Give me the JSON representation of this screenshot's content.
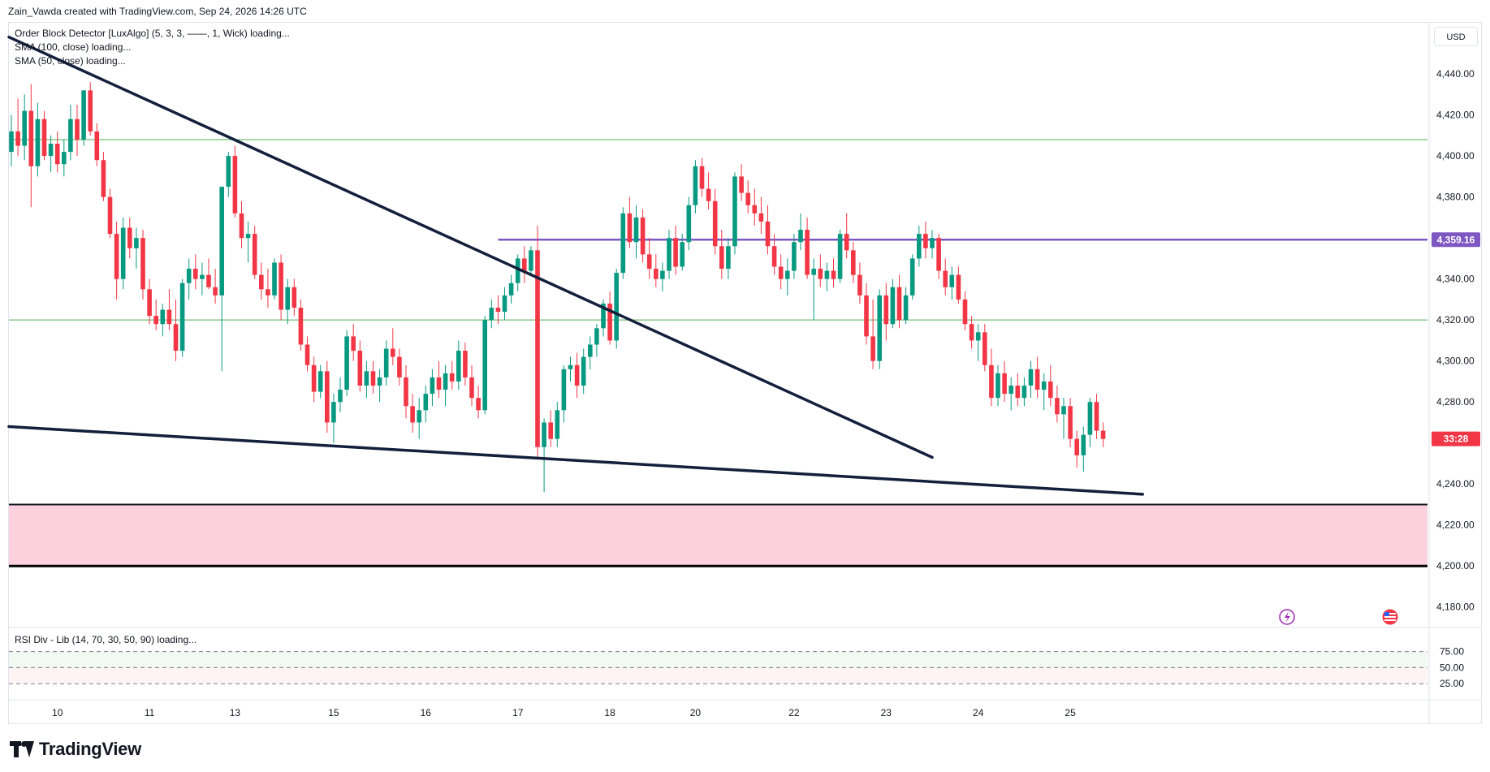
{
  "header": {
    "credit": "Zain_Vawda created with TradingView.com, Sep 24, 2026 14:26 UTC"
  },
  "legend": {
    "indicators": [
      "Order Block Detector [LuxAlgo] (5, 3, 3, ——, 1, Wick) loading...",
      "SMA (100, close) loading...",
      "SMA (50, close) loading..."
    ]
  },
  "toolbar": {
    "currency": "USD"
  },
  "rsi": {
    "legend": "RSI Div - Lib (14, 70, 30, 50, 90) loading..."
  },
  "brand": {
    "name": "TradingView"
  },
  "colors": {
    "bull": "#089981",
    "bear": "#f23645",
    "trendline": "#131f3b",
    "level_line": "#7e57c2",
    "zone_fill": "#fcd0dc",
    "support_line": "#4caf50"
  },
  "icons": [
    "lightning-icon",
    "flag-icon",
    "tradingview-logo-icon"
  ],
  "chart_data": {
    "type": "candlestick",
    "ylim": [
      4170,
      4465
    ],
    "y_ticks": [
      {
        "value": 4440,
        "label": "4,440.00"
      },
      {
        "value": 4420,
        "label": "4,420.00"
      },
      {
        "value": 4400,
        "label": "4,400.00"
      },
      {
        "value": 4380,
        "label": "4,380.00"
      },
      {
        "value": 4340,
        "label": "4,340.00"
      },
      {
        "value": 4320,
        "label": "4,320.00"
      },
      {
        "value": 4300,
        "label": "4,300.00"
      },
      {
        "value": 4280,
        "label": "4,280.00"
      },
      {
        "value": 4240,
        "label": "4,240.00"
      },
      {
        "value": 4220,
        "label": "4,220.00"
      },
      {
        "value": 4200,
        "label": "4,200.00"
      },
      {
        "value": 4180,
        "label": "4,180.00"
      }
    ],
    "x_ticks": [
      {
        "index": 7,
        "label": "10"
      },
      {
        "index": 21,
        "label": "11"
      },
      {
        "index": 34,
        "label": "13"
      },
      {
        "index": 49,
        "label": "15"
      },
      {
        "index": 63,
        "label": "16"
      },
      {
        "index": 77,
        "label": "17"
      },
      {
        "index": 91,
        "label": "18"
      },
      {
        "index": 104,
        "label": "20"
      },
      {
        "index": 119,
        "label": "22"
      },
      {
        "index": 133,
        "label": "23"
      },
      {
        "index": 147,
        "label": "24"
      },
      {
        "index": 161,
        "label": "25"
      }
    ],
    "price_labels": [
      {
        "value": 4359.16,
        "label": "4,359.16",
        "color": "#7e57c2"
      },
      {
        "value": 4262,
        "label": "33:28",
        "color": "#f23645"
      }
    ],
    "horizontal_levels": [
      {
        "value": 4408,
        "color": "#4caf50"
      },
      {
        "value": 4320,
        "color": "#4caf50"
      },
      {
        "value": 4359.16,
        "color": "#7e57c2",
        "from_index": 74
      }
    ],
    "order_block_zone": {
      "top": 4230,
      "bottom": 4200
    },
    "trendlines": [
      {
        "from": [
          0,
          4458
        ],
        "to": [
          140,
          4253
        ]
      },
      {
        "from": [
          0,
          4268
        ],
        "to": [
          172,
          4235
        ]
      }
    ],
    "rsi_levels": [
      {
        "value": 75,
        "label": "75.00"
      },
      {
        "value": 50,
        "label": "50.00"
      },
      {
        "value": 25,
        "label": "25.00"
      }
    ],
    "candles": [
      {
        "o": 4402,
        "h": 4420,
        "l": 4395,
        "c": 4412
      },
      {
        "o": 4412,
        "h": 4428,
        "l": 4400,
        "c": 4405
      },
      {
        "o": 4405,
        "h": 4430,
        "l": 4398,
        "c": 4422
      },
      {
        "o": 4422,
        "h": 4435,
        "l": 4375,
        "c": 4395
      },
      {
        "o": 4395,
        "h": 4426,
        "l": 4390,
        "c": 4418
      },
      {
        "o": 4418,
        "h": 4422,
        "l": 4398,
        "c": 4400
      },
      {
        "o": 4400,
        "h": 4410,
        "l": 4392,
        "c": 4406
      },
      {
        "o": 4406,
        "h": 4412,
        "l": 4392,
        "c": 4396
      },
      {
        "o": 4396,
        "h": 4408,
        "l": 4390,
        "c": 4402
      },
      {
        "o": 4402,
        "h": 4425,
        "l": 4398,
        "c": 4418
      },
      {
        "o": 4418,
        "h": 4425,
        "l": 4400,
        "c": 4408
      },
      {
        "o": 4408,
        "h": 4432,
        "l": 4405,
        "c": 4432
      },
      {
        "o": 4432,
        "h": 4436,
        "l": 4410,
        "c": 4412
      },
      {
        "o": 4412,
        "h": 4416,
        "l": 4395,
        "c": 4398
      },
      {
        "o": 4398,
        "h": 4402,
        "l": 4378,
        "c": 4380
      },
      {
        "o": 4380,
        "h": 4384,
        "l": 4360,
        "c": 4362
      },
      {
        "o": 4362,
        "h": 4368,
        "l": 4330,
        "c": 4340
      },
      {
        "o": 4340,
        "h": 4370,
        "l": 4335,
        "c": 4365
      },
      {
        "o": 4365,
        "h": 4370,
        "l": 4350,
        "c": 4355
      },
      {
        "o": 4355,
        "h": 4365,
        "l": 4345,
        "c": 4360
      },
      {
        "o": 4360,
        "h": 4364,
        "l": 4330,
        "c": 4335
      },
      {
        "o": 4335,
        "h": 4340,
        "l": 4318,
        "c": 4322
      },
      {
        "o": 4322,
        "h": 4330,
        "l": 4315,
        "c": 4318
      },
      {
        "o": 4318,
        "h": 4328,
        "l": 4312,
        "c": 4325
      },
      {
        "o": 4325,
        "h": 4335,
        "l": 4315,
        "c": 4318
      },
      {
        "o": 4318,
        "h": 4330,
        "l": 4300,
        "c": 4305
      },
      {
        "o": 4305,
        "h": 4340,
        "l": 4302,
        "c": 4338
      },
      {
        "o": 4338,
        "h": 4350,
        "l": 4330,
        "c": 4345
      },
      {
        "o": 4345,
        "h": 4352,
        "l": 4335,
        "c": 4340
      },
      {
        "o": 4340,
        "h": 4348,
        "l": 4332,
        "c": 4342
      },
      {
        "o": 4342,
        "h": 4350,
        "l": 4335,
        "c": 4336
      },
      {
        "o": 4336,
        "h": 4345,
        "l": 4328,
        "c": 4332
      },
      {
        "o": 4332,
        "h": 4385,
        "l": 4295,
        "c": 4385
      },
      {
        "o": 4385,
        "h": 4402,
        "l": 4380,
        "c": 4400
      },
      {
        "o": 4400,
        "h": 4405,
        "l": 4370,
        "c": 4372
      },
      {
        "o": 4372,
        "h": 4378,
        "l": 4355,
        "c": 4360
      },
      {
        "o": 4360,
        "h": 4368,
        "l": 4348,
        "c": 4362
      },
      {
        "o": 4362,
        "h": 4366,
        "l": 4340,
        "c": 4342
      },
      {
        "o": 4342,
        "h": 4348,
        "l": 4330,
        "c": 4335
      },
      {
        "o": 4335,
        "h": 4345,
        "l": 4326,
        "c": 4332
      },
      {
        "o": 4332,
        "h": 4350,
        "l": 4330,
        "c": 4348
      },
      {
        "o": 4348,
        "h": 4352,
        "l": 4320,
        "c": 4325
      },
      {
        "o": 4325,
        "h": 4340,
        "l": 4318,
        "c": 4336
      },
      {
        "o": 4336,
        "h": 4340,
        "l": 4322,
        "c": 4326
      },
      {
        "o": 4326,
        "h": 4330,
        "l": 4305,
        "c": 4308
      },
      {
        "o": 4308,
        "h": 4312,
        "l": 4295,
        "c": 4298
      },
      {
        "o": 4298,
        "h": 4302,
        "l": 4280,
        "c": 4285
      },
      {
        "o": 4285,
        "h": 4298,
        "l": 4282,
        "c": 4295
      },
      {
        "o": 4295,
        "h": 4300,
        "l": 4265,
        "c": 4270
      },
      {
        "o": 4270,
        "h": 4284,
        "l": 4260,
        "c": 4280
      },
      {
        "o": 4280,
        "h": 4292,
        "l": 4275,
        "c": 4286
      },
      {
        "o": 4286,
        "h": 4315,
        "l": 4283,
        "c": 4312
      },
      {
        "o": 4312,
        "h": 4318,
        "l": 4300,
        "c": 4305
      },
      {
        "o": 4305,
        "h": 4310,
        "l": 4285,
        "c": 4288
      },
      {
        "o": 4288,
        "h": 4300,
        "l": 4282,
        "c": 4295
      },
      {
        "o": 4295,
        "h": 4300,
        "l": 4284,
        "c": 4288
      },
      {
        "o": 4288,
        "h": 4296,
        "l": 4280,
        "c": 4292
      },
      {
        "o": 4292,
        "h": 4310,
        "l": 4288,
        "c": 4306
      },
      {
        "o": 4306,
        "h": 4316,
        "l": 4298,
        "c": 4302
      },
      {
        "o": 4302,
        "h": 4306,
        "l": 4288,
        "c": 4292
      },
      {
        "o": 4292,
        "h": 4298,
        "l": 4272,
        "c": 4278
      },
      {
        "o": 4278,
        "h": 4284,
        "l": 4265,
        "c": 4270
      },
      {
        "o": 4270,
        "h": 4282,
        "l": 4262,
        "c": 4276
      },
      {
        "o": 4276,
        "h": 4288,
        "l": 4270,
        "c": 4284
      },
      {
        "o": 4284,
        "h": 4296,
        "l": 4278,
        "c": 4292
      },
      {
        "o": 4292,
        "h": 4300,
        "l": 4282,
        "c": 4286
      },
      {
        "o": 4286,
        "h": 4298,
        "l": 4278,
        "c": 4294
      },
      {
        "o": 4294,
        "h": 4300,
        "l": 4286,
        "c": 4290
      },
      {
        "o": 4290,
        "h": 4310,
        "l": 4286,
        "c": 4305
      },
      {
        "o": 4305,
        "h": 4309,
        "l": 4288,
        "c": 4292
      },
      {
        "o": 4292,
        "h": 4298,
        "l": 4278,
        "c": 4282
      },
      {
        "o": 4282,
        "h": 4288,
        "l": 4272,
        "c": 4276
      },
      {
        "o": 4276,
        "h": 4322,
        "l": 4274,
        "c": 4320
      },
      {
        "o": 4320,
        "h": 4330,
        "l": 4316,
        "c": 4326
      },
      {
        "o": 4326,
        "h": 4332,
        "l": 4318,
        "c": 4324
      },
      {
        "o": 4324,
        "h": 4336,
        "l": 4320,
        "c": 4332
      },
      {
        "o": 4332,
        "h": 4342,
        "l": 4328,
        "c": 4338
      },
      {
        "o": 4338,
        "h": 4352,
        "l": 4334,
        "c": 4350
      },
      {
        "o": 4350,
        "h": 4356,
        "l": 4338,
        "c": 4344
      },
      {
        "o": 4344,
        "h": 4356,
        "l": 4342,
        "c": 4354
      },
      {
        "o": 4354,
        "h": 4366,
        "l": 4252,
        "c": 4258
      },
      {
        "o": 4258,
        "h": 4272,
        "l": 4236,
        "c": 4270
      },
      {
        "o": 4270,
        "h": 4276,
        "l": 4258,
        "c": 4262
      },
      {
        "o": 4262,
        "h": 4280,
        "l": 4258,
        "c": 4276
      },
      {
        "o": 4276,
        "h": 4298,
        "l": 4270,
        "c": 4296
      },
      {
        "o": 4296,
        "h": 4302,
        "l": 4290,
        "c": 4298
      },
      {
        "o": 4298,
        "h": 4304,
        "l": 4282,
        "c": 4288
      },
      {
        "o": 4288,
        "h": 4306,
        "l": 4284,
        "c": 4302
      },
      {
        "o": 4302,
        "h": 4312,
        "l": 4296,
        "c": 4308
      },
      {
        "o": 4308,
        "h": 4318,
        "l": 4302,
        "c": 4316
      },
      {
        "o": 4316,
        "h": 4330,
        "l": 4312,
        "c": 4328
      },
      {
        "o": 4328,
        "h": 4334,
        "l": 4308,
        "c": 4310
      },
      {
        "o": 4310,
        "h": 4345,
        "l": 4306,
        "c": 4343
      },
      {
        "o": 4343,
        "h": 4375,
        "l": 4340,
        "c": 4372
      },
      {
        "o": 4372,
        "h": 4380,
        "l": 4355,
        "c": 4358
      },
      {
        "o": 4358,
        "h": 4376,
        "l": 4350,
        "c": 4370
      },
      {
        "o": 4370,
        "h": 4374,
        "l": 4348,
        "c": 4352
      },
      {
        "o": 4352,
        "h": 4360,
        "l": 4340,
        "c": 4345
      },
      {
        "o": 4345,
        "h": 4352,
        "l": 4336,
        "c": 4340
      },
      {
        "o": 4340,
        "h": 4348,
        "l": 4334,
        "c": 4344
      },
      {
        "o": 4344,
        "h": 4364,
        "l": 4340,
        "c": 4360
      },
      {
        "o": 4360,
        "h": 4366,
        "l": 4342,
        "c": 4346
      },
      {
        "o": 4346,
        "h": 4362,
        "l": 4344,
        "c": 4358
      },
      {
        "o": 4358,
        "h": 4380,
        "l": 4354,
        "c": 4376
      },
      {
        "o": 4376,
        "h": 4398,
        "l": 4372,
        "c": 4395
      },
      {
        "o": 4395,
        "h": 4399,
        "l": 4380,
        "c": 4384
      },
      {
        "o": 4384,
        "h": 4392,
        "l": 4374,
        "c": 4378
      },
      {
        "o": 4378,
        "h": 4384,
        "l": 4352,
        "c": 4356
      },
      {
        "o": 4356,
        "h": 4364,
        "l": 4340,
        "c": 4345
      },
      {
        "o": 4345,
        "h": 4360,
        "l": 4340,
        "c": 4356
      },
      {
        "o": 4356,
        "h": 4392,
        "l": 4352,
        "c": 4390
      },
      {
        "o": 4390,
        "h": 4396,
        "l": 4378,
        "c": 4382
      },
      {
        "o": 4382,
        "h": 4388,
        "l": 4372,
        "c": 4376
      },
      {
        "o": 4376,
        "h": 4384,
        "l": 4366,
        "c": 4372
      },
      {
        "o": 4372,
        "h": 4380,
        "l": 4362,
        "c": 4368
      },
      {
        "o": 4368,
        "h": 4376,
        "l": 4352,
        "c": 4356
      },
      {
        "o": 4356,
        "h": 4362,
        "l": 4342,
        "c": 4346
      },
      {
        "o": 4346,
        "h": 4352,
        "l": 4335,
        "c": 4340
      },
      {
        "o": 4340,
        "h": 4350,
        "l": 4332,
        "c": 4344
      },
      {
        "o": 4344,
        "h": 4362,
        "l": 4340,
        "c": 4358
      },
      {
        "o": 4358,
        "h": 4372,
        "l": 4354,
        "c": 4364
      },
      {
        "o": 4364,
        "h": 4370,
        "l": 4340,
        "c": 4342
      },
      {
        "o": 4342,
        "h": 4350,
        "l": 4320,
        "c": 4345
      },
      {
        "o": 4345,
        "h": 4352,
        "l": 4336,
        "c": 4340
      },
      {
        "o": 4340,
        "h": 4348,
        "l": 4334,
        "c": 4344
      },
      {
        "o": 4344,
        "h": 4350,
        "l": 4336,
        "c": 4340
      },
      {
        "o": 4340,
        "h": 4364,
        "l": 4338,
        "c": 4362
      },
      {
        "o": 4362,
        "h": 4372,
        "l": 4350,
        "c": 4354
      },
      {
        "o": 4354,
        "h": 4358,
        "l": 4338,
        "c": 4342
      },
      {
        "o": 4342,
        "h": 4348,
        "l": 4328,
        "c": 4332
      },
      {
        "o": 4332,
        "h": 4338,
        "l": 4308,
        "c": 4312
      },
      {
        "o": 4312,
        "h": 4330,
        "l": 4296,
        "c": 4300
      },
      {
        "o": 4300,
        "h": 4335,
        "l": 4296,
        "c": 4332
      },
      {
        "o": 4332,
        "h": 4338,
        "l": 4310,
        "c": 4318
      },
      {
        "o": 4318,
        "h": 4340,
        "l": 4316,
        "c": 4336
      },
      {
        "o": 4336,
        "h": 4342,
        "l": 4316,
        "c": 4320
      },
      {
        "o": 4320,
        "h": 4336,
        "l": 4318,
        "c": 4332
      },
      {
        "o": 4332,
        "h": 4352,
        "l": 4330,
        "c": 4350
      },
      {
        "o": 4350,
        "h": 4366,
        "l": 4346,
        "c": 4362
      },
      {
        "o": 4362,
        "h": 4368,
        "l": 4350,
        "c": 4355
      },
      {
        "o": 4355,
        "h": 4364,
        "l": 4350,
        "c": 4360
      },
      {
        "o": 4360,
        "h": 4362,
        "l": 4340,
        "c": 4344
      },
      {
        "o": 4344,
        "h": 4350,
        "l": 4332,
        "c": 4336
      },
      {
        "o": 4336,
        "h": 4346,
        "l": 4330,
        "c": 4342
      },
      {
        "o": 4342,
        "h": 4346,
        "l": 4328,
        "c": 4330
      },
      {
        "o": 4330,
        "h": 4334,
        "l": 4315,
        "c": 4318
      },
      {
        "o": 4318,
        "h": 4322,
        "l": 4306,
        "c": 4310
      },
      {
        "o": 4310,
        "h": 4318,
        "l": 4300,
        "c": 4314
      },
      {
        "o": 4314,
        "h": 4318,
        "l": 4295,
        "c": 4298
      },
      {
        "o": 4298,
        "h": 4306,
        "l": 4278,
        "c": 4282
      },
      {
        "o": 4282,
        "h": 4298,
        "l": 4278,
        "c": 4294
      },
      {
        "o": 4294,
        "h": 4300,
        "l": 4280,
        "c": 4284
      },
      {
        "o": 4284,
        "h": 4292,
        "l": 4276,
        "c": 4288
      },
      {
        "o": 4288,
        "h": 4294,
        "l": 4278,
        "c": 4282
      },
      {
        "o": 4282,
        "h": 4292,
        "l": 4278,
        "c": 4288
      },
      {
        "o": 4288,
        "h": 4300,
        "l": 4282,
        "c": 4296
      },
      {
        "o": 4296,
        "h": 4302,
        "l": 4282,
        "c": 4286
      },
      {
        "o": 4286,
        "h": 4294,
        "l": 4276,
        "c": 4290
      },
      {
        "o": 4290,
        "h": 4298,
        "l": 4278,
        "c": 4282
      },
      {
        "o": 4282,
        "h": 4288,
        "l": 4270,
        "c": 4274
      },
      {
        "o": 4274,
        "h": 4282,
        "l": 4262,
        "c": 4278
      },
      {
        "o": 4278,
        "h": 4282,
        "l": 4258,
        "c": 4262
      },
      {
        "o": 4262,
        "h": 4266,
        "l": 4248,
        "c": 4254
      },
      {
        "o": 4254,
        "h": 4268,
        "l": 4246,
        "c": 4264
      },
      {
        "o": 4264,
        "h": 4282,
        "l": 4258,
        "c": 4280
      },
      {
        "o": 4280,
        "h": 4284,
        "l": 4262,
        "c": 4266
      },
      {
        "o": 4266,
        "h": 4270,
        "l": 4258,
        "c": 4262
      }
    ]
  }
}
